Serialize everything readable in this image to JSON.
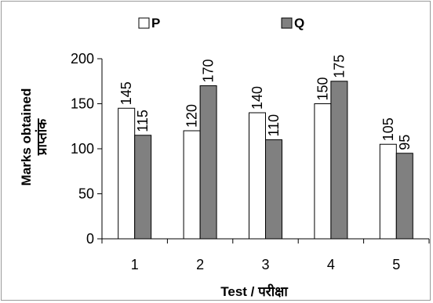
{
  "chart_data": {
    "type": "bar",
    "categories": [
      "1",
      "2",
      "3",
      "4",
      "5"
    ],
    "series": [
      {
        "name": "P",
        "values": [
          145,
          120,
          140,
          150,
          105
        ],
        "color": "#ffffff"
      },
      {
        "name": "Q",
        "values": [
          115,
          170,
          110,
          175,
          95
        ],
        "color": "#808080"
      }
    ],
    "xlabel": "Test / परीक्षा",
    "ylabel_line1": "Marks obtained",
    "ylabel_line2": "प्राप्तांक",
    "ylim": [
      0,
      200
    ],
    "yticks": [
      0,
      50,
      100,
      150,
      200
    ],
    "grid": false,
    "legend_position": "top"
  }
}
